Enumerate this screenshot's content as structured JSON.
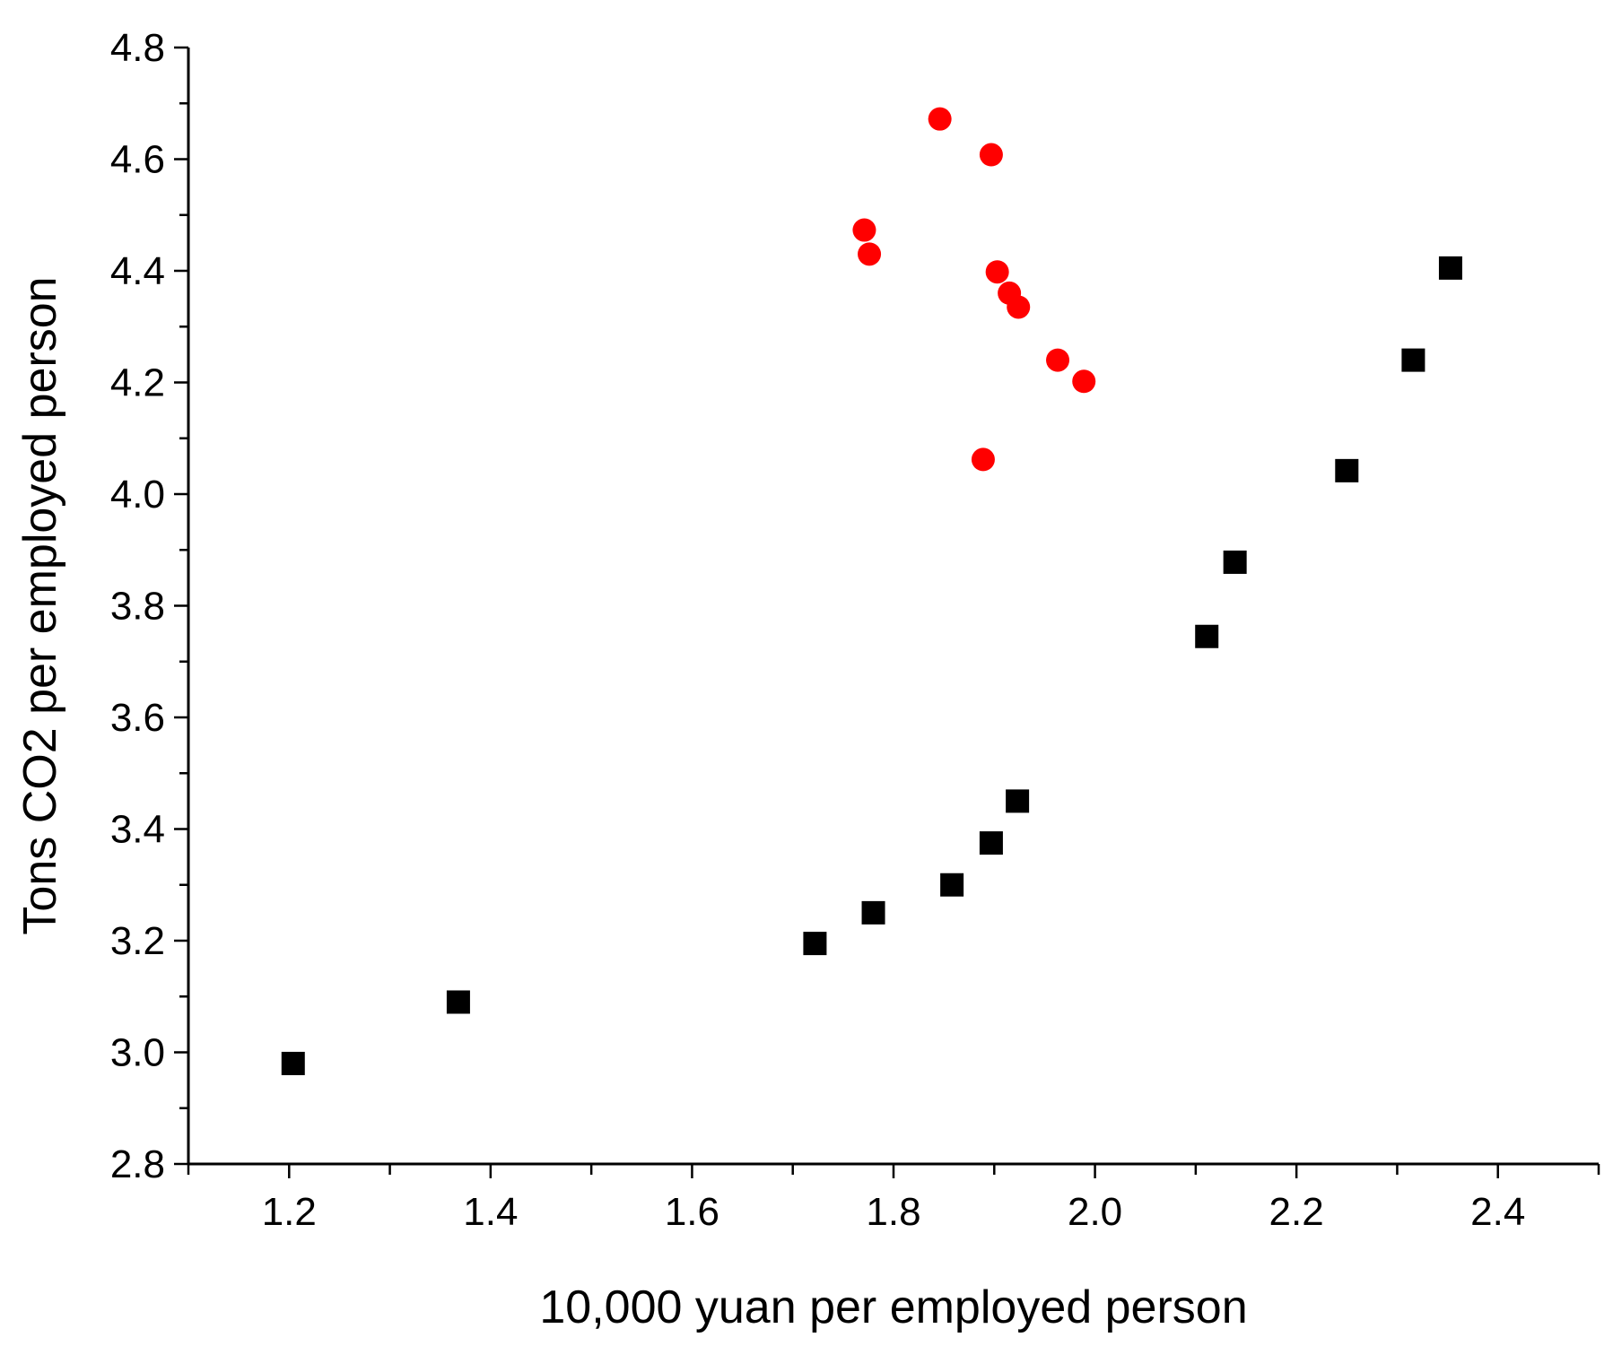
{
  "chart_data": {
    "type": "scatter",
    "title": "",
    "xlabel": "10,000 yuan per employed person",
    "ylabel": "Tons CO2 per employed person",
    "xlim": [
      1.1,
      2.5
    ],
    "ylim": [
      2.8,
      4.8
    ],
    "x_ticks": [
      1.2,
      1.4,
      1.6,
      1.8,
      2.0,
      2.2,
      2.4
    ],
    "x_tick_labels": [
      "1.2",
      "1.4",
      "1.6",
      "1.8",
      "2.0",
      "2.2",
      "2.4"
    ],
    "y_ticks": [
      2.8,
      3.0,
      3.2,
      3.4,
      3.6,
      3.8,
      4.0,
      4.2,
      4.4,
      4.6,
      4.8
    ],
    "y_tick_labels": [
      "2.8",
      "3.0",
      "3.2",
      "3.4",
      "3.6",
      "3.8",
      "4.0",
      "4.2",
      "4.4",
      "4.6",
      "4.8"
    ],
    "grid": false,
    "legend": "none",
    "series": [
      {
        "marker": "square",
        "color": "#000000",
        "points": [
          {
            "x": 1.204,
            "y": 2.98
          },
          {
            "x": 1.368,
            "y": 3.09
          },
          {
            "x": 1.722,
            "y": 3.195
          },
          {
            "x": 1.78,
            "y": 3.25
          },
          {
            "x": 1.858,
            "y": 3.3
          },
          {
            "x": 1.897,
            "y": 3.375
          },
          {
            "x": 1.923,
            "y": 3.45
          },
          {
            "x": 2.111,
            "y": 3.745
          },
          {
            "x": 2.139,
            "y": 3.878
          },
          {
            "x": 2.25,
            "y": 4.042
          },
          {
            "x": 2.316,
            "y": 4.24
          },
          {
            "x": 2.353,
            "y": 4.405
          }
        ]
      },
      {
        "marker": "circle",
        "color": "#ff0000",
        "points": [
          {
            "x": 1.846,
            "y": 4.672
          },
          {
            "x": 1.897,
            "y": 4.608
          },
          {
            "x": 1.771,
            "y": 4.473
          },
          {
            "x": 1.776,
            "y": 4.43
          },
          {
            "x": 1.903,
            "y": 4.398
          },
          {
            "x": 1.915,
            "y": 4.36
          },
          {
            "x": 1.924,
            "y": 4.335
          },
          {
            "x": 1.963,
            "y": 4.24
          },
          {
            "x": 1.989,
            "y": 4.202
          },
          {
            "x": 1.889,
            "y": 4.062
          }
        ]
      }
    ]
  }
}
